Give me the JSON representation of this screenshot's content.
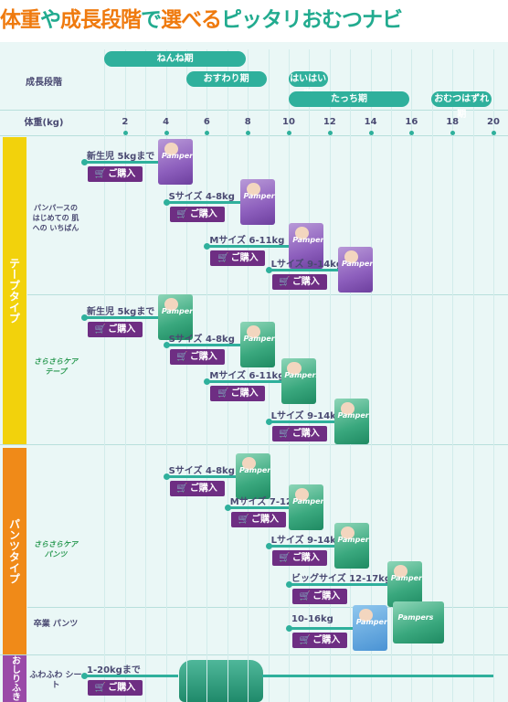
{
  "header": {
    "title_part1": "体重",
    "title_part2": "や",
    "title_part3": "成長段階",
    "title_part4": "で",
    "title_part5": "選べる",
    "title_part6": "ピッタリおむつナビ"
  },
  "chart": {
    "row_stage_label": "成長段階",
    "row_weight_label": "体重(kg)",
    "stages": [
      {
        "label": "ねんね期",
        "from_kg": 0,
        "to_kg": 8
      },
      {
        "label": "おすわり期",
        "from_kg": 4,
        "to_kg": 9
      },
      {
        "label": "はいはい期",
        "from_kg": 9,
        "to_kg": 12
      },
      {
        "label": "たっち期",
        "from_kg": 9,
        "to_kg": 16
      },
      {
        "label": "おむつはずれ期",
        "from_kg": 16,
        "to_kg": 20
      }
    ],
    "ticks": [
      "2",
      "4",
      "6",
      "8",
      "10",
      "12",
      "14",
      "16",
      "18",
      "20"
    ],
    "tape_side_label": "テープタイプ",
    "pants_side_label": "パンツタイプ",
    "wipe_side_label": "おしりふき",
    "tape_group1_label": "パンパースの はじめての 肌への いちばん",
    "tape_group2_label": "さらさらケア テープ",
    "pants_group1_label": "さらさらケア パンツ",
    "pants_group2_label": "卒業 パンツ",
    "wipe_group_label": "ふわふわ シート",
    "buy_label": "ご購入",
    "tape1": [
      {
        "size": "新生児",
        "range": "5kgまで"
      },
      {
        "size": "Sサイズ",
        "range": "4-8kg"
      },
      {
        "size": "Mサイズ",
        "range": "6-11kg"
      },
      {
        "size": "Lサイズ",
        "range": "9-14kg"
      }
    ],
    "tape2": [
      {
        "size": "新生児",
        "range": "5kgまで"
      },
      {
        "size": "Sサイズ",
        "range": "4-8kg"
      },
      {
        "size": "Mサイズ",
        "range": "6-11kg"
      },
      {
        "size": "Lサイズ",
        "range": "9-14kg"
      }
    ],
    "pants": [
      {
        "size": "Sサイズ",
        "range": "4-8kg"
      },
      {
        "size": "Mサイズ",
        "range": "7-12kg"
      },
      {
        "size": "Lサイズ",
        "range": "9-14kg"
      },
      {
        "size": "ビッグサイズ",
        "range": "12-17kg"
      },
      {
        "size": "",
        "range": "10-16kg"
      }
    ],
    "wipes": {
      "range": "1-20kgまで"
    },
    "pack_logo": "Pampers"
  }
}
